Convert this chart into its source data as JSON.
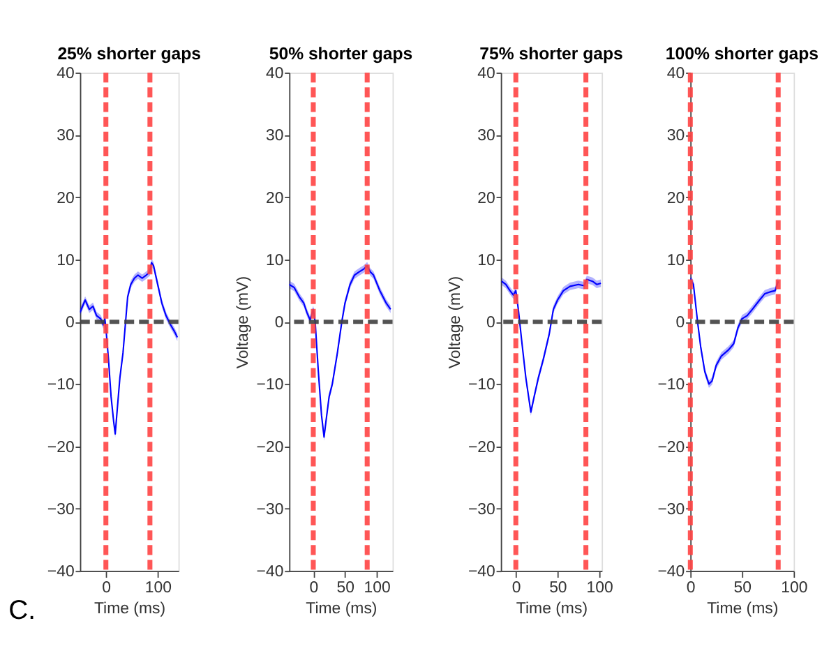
{
  "chart_data": [
    {
      "type": "line",
      "title": "25% shorter gaps",
      "xlabel": "Time (ms)",
      "annotations": [
        "C."
      ],
      "xlim": [
        -50,
        140
      ],
      "xticks": [
        0,
        100
      ],
      "ylim": [
        -40,
        40
      ],
      "yticks": [
        -40,
        -30,
        -20,
        -10,
        0,
        10,
        20,
        30,
        40
      ],
      "grid": false,
      "line_style": "solid",
      "marker": "none",
      "series": [
        {
          "color": "#0000ff",
          "x": [
            -50,
            -40,
            -32,
            -25,
            -18,
            -10,
            -5,
            -2,
            0,
            5,
            10,
            15,
            18,
            22,
            27,
            33,
            38,
            42,
            48,
            55,
            62,
            70,
            78,
            85,
            88,
            92,
            100,
            108,
            116,
            125,
            132,
            138
          ],
          "values": [
            1.5,
            3.5,
            2,
            2.5,
            1,
            0.5,
            -0.5,
            0.5,
            -1,
            -6,
            -12,
            -16,
            -18,
            -14,
            -9,
            -5,
            0,
            4,
            6,
            7,
            7.5,
            7,
            7.5,
            8,
            9.5,
            9,
            6,
            3,
            1,
            -0.5,
            -1.5,
            -2.5
          ],
          "lower": [
            0.9,
            2.9,
            1.4,
            1.9,
            0.4,
            -0.1,
            -1.1,
            -0.1,
            -1.6,
            -6.6,
            -12.6,
            -16.6,
            -18.6,
            -14.6,
            -9.6,
            -5.6,
            -0.6,
            3.4,
            5.4,
            6.4,
            6.9,
            6.4,
            6.9,
            7.4,
            8.9,
            8.4,
            5.4,
            2.4,
            0.4,
            -1.1,
            -2.1,
            -3.1
          ],
          "upper": [
            2.1,
            4.1,
            2.6,
            3.1,
            1.6,
            1.1,
            0.1,
            1.1,
            -0.4,
            -5.4,
            -11.4,
            -15.4,
            -17.4,
            -13.4,
            -8.4,
            -4.4,
            0.6,
            4.6,
            6.6,
            7.6,
            8.1,
            7.6,
            8.1,
            8.6,
            10.1,
            9.6,
            6.6,
            3.6,
            1.6,
            0.1,
            -0.9,
            -1.9
          ]
        }
      ],
      "ref_lines": [
        {
          "axis": "y",
          "value": 0,
          "color": "#404040",
          "line_style": "dashed"
        },
        {
          "axis": "x",
          "value": 0,
          "color": "#ff4444",
          "line_style": "dashed"
        },
        {
          "axis": "x",
          "value": 85,
          "color": "#ff4444",
          "line_style": "dashed"
        }
      ]
    },
    {
      "type": "line",
      "title": "50% shorter gaps",
      "xlabel": "Time (ms)",
      "ylabel": "Voltage (mV)",
      "xlim": [
        -38,
        125
      ],
      "xticks": [
        0,
        50,
        100
      ],
      "ylim": [
        -40,
        40
      ],
      "yticks": [
        -40,
        -30,
        -20,
        -10,
        0,
        10,
        20,
        30,
        40
      ],
      "grid": false,
      "line_style": "solid",
      "marker": "none",
      "series": [
        {
          "color": "#0000ff",
          "x": [
            -38,
            -30,
            -22,
            -15,
            -10,
            -5,
            0,
            3,
            8,
            13,
            17,
            20,
            25,
            30,
            38,
            45,
            50,
            58,
            65,
            72,
            80,
            85,
            90,
            95,
            105,
            115,
            122
          ],
          "values": [
            6,
            5.5,
            4,
            3,
            1.5,
            0.3,
            2,
            0,
            -8,
            -15,
            -18.5,
            -16,
            -12,
            -10,
            -5,
            0,
            3,
            6,
            7.5,
            8,
            8.5,
            9,
            8,
            7.5,
            5,
            3,
            2
          ],
          "lower": [
            5.4,
            4.9,
            3.4,
            2.4,
            0.9,
            -0.3,
            1.4,
            -0.6,
            -8.6,
            -15.6,
            -19.1,
            -16.6,
            -12.6,
            -10.6,
            -5.6,
            -0.6,
            2.4,
            5.4,
            6.9,
            7.4,
            7.9,
            8.4,
            7.4,
            6.9,
            4.4,
            2.4,
            1.4
          ],
          "upper": [
            6.6,
            6.1,
            4.6,
            3.6,
            2.1,
            0.9,
            2.6,
            0.6,
            -7.4,
            -14.4,
            -17.9,
            -15.4,
            -11.4,
            -9.4,
            -4.4,
            0.6,
            3.6,
            6.6,
            8.1,
            8.6,
            9.1,
            9.6,
            8.6,
            8.1,
            5.6,
            3.6,
            2.6
          ]
        }
      ],
      "ref_lines": [
        {
          "axis": "y",
          "value": 0,
          "color": "#404040",
          "line_style": "dashed"
        },
        {
          "axis": "x",
          "value": 0,
          "color": "#ff4444",
          "line_style": "dashed"
        },
        {
          "axis": "x",
          "value": 85,
          "color": "#ff4444",
          "line_style": "dashed"
        }
      ]
    },
    {
      "type": "line",
      "title": "75% shorter gaps",
      "xlabel": "Time (ms)",
      "ylabel": "Voltage (mV)",
      "xlim": [
        -18,
        103
      ],
      "xticks": [
        0,
        50,
        100
      ],
      "ylim": [
        -40,
        40
      ],
      "yticks": [
        -40,
        -30,
        -20,
        -10,
        0,
        10,
        20,
        30,
        40
      ],
      "grid": false,
      "line_style": "solid",
      "marker": "none",
      "series": [
        {
          "color": "#0000ff",
          "x": [
            -17,
            -12,
            -7,
            -3,
            0,
            3,
            7,
            12,
            18,
            22,
            27,
            33,
            40,
            45,
            50,
            57,
            65,
            75,
            82,
            85,
            92,
            97,
            102
          ],
          "values": [
            6.5,
            6,
            5,
            4.3,
            5,
            2,
            -3,
            -9,
            -14.5,
            -12,
            -9,
            -6,
            -2,
            2,
            3.5,
            5,
            5.7,
            6,
            5.8,
            6.8,
            6.5,
            6,
            6.2
          ],
          "lower": [
            5.9,
            5.4,
            4.4,
            3.7,
            4.4,
            1.4,
            -3.6,
            -9.6,
            -15.1,
            -12.6,
            -9.6,
            -6.6,
            -2.6,
            1.4,
            2.9,
            4.4,
            5.1,
            5.4,
            5.2,
            6.2,
            5.9,
            5.4,
            5.6
          ],
          "upper": [
            7.1,
            6.6,
            5.6,
            4.9,
            5.6,
            2.6,
            -2.4,
            -8.4,
            -13.9,
            -11.4,
            -8.4,
            -5.4,
            -1.4,
            2.6,
            4.1,
            5.6,
            6.3,
            6.6,
            6.4,
            7.4,
            7.1,
            6.6,
            6.8
          ]
        }
      ],
      "ref_lines": [
        {
          "axis": "y",
          "value": 0,
          "color": "#404040",
          "line_style": "dashed"
        },
        {
          "axis": "x",
          "value": 0,
          "color": "#ff4444",
          "line_style": "dashed"
        },
        {
          "axis": "x",
          "value": 84,
          "color": "#ff4444",
          "line_style": "dashed"
        }
      ]
    },
    {
      "type": "line",
      "title": "100% shorter gaps",
      "xlabel": "Time (ms)",
      "xlim": [
        0,
        100
      ],
      "xticks": [
        0,
        50,
        100
      ],
      "ylim": [
        -40,
        40
      ],
      "yticks": [
        -40,
        -30,
        -20,
        -10,
        0,
        10,
        20,
        30,
        40
      ],
      "grid": false,
      "line_style": "solid",
      "marker": "none",
      "series": [
        {
          "color": "#0000ff",
          "x": [
            0,
            3,
            7,
            10,
            14,
            18,
            21,
            25,
            30,
            37,
            42,
            46,
            50,
            55,
            60,
            67,
            72,
            77,
            82,
            85
          ],
          "values": [
            7,
            6,
            0,
            -4,
            -8,
            -10,
            -9.5,
            -7,
            -5.5,
            -4.5,
            -3.5,
            -1,
            0.5,
            1,
            2,
            3.5,
            4.5,
            4.8,
            5,
            6.5
          ],
          "lower": [
            6.4,
            5.4,
            -0.6,
            -4.6,
            -8.6,
            -10.6,
            -10.1,
            -7.6,
            -6.1,
            -5.1,
            -4.1,
            -1.6,
            -0.1,
            0.4,
            1.4,
            2.9,
            3.9,
            4.2,
            4.4,
            5.9
          ],
          "upper": [
            7.6,
            6.6,
            0.6,
            -3.4,
            -7.4,
            -9.4,
            -8.9,
            -6.4,
            -4.9,
            -3.9,
            -2.9,
            -0.4,
            1.1,
            1.6,
            2.6,
            4.1,
            5.1,
            5.4,
            5.6,
            7.1
          ]
        }
      ],
      "ref_lines": [
        {
          "axis": "y",
          "value": 0,
          "color": "#404040",
          "line_style": "dashed"
        },
        {
          "axis": "x",
          "value": 0,
          "color": "#ff4444",
          "line_style": "dashed"
        },
        {
          "axis": "x",
          "value": 85,
          "color": "#ff4444",
          "line_style": "dashed"
        }
      ]
    }
  ]
}
